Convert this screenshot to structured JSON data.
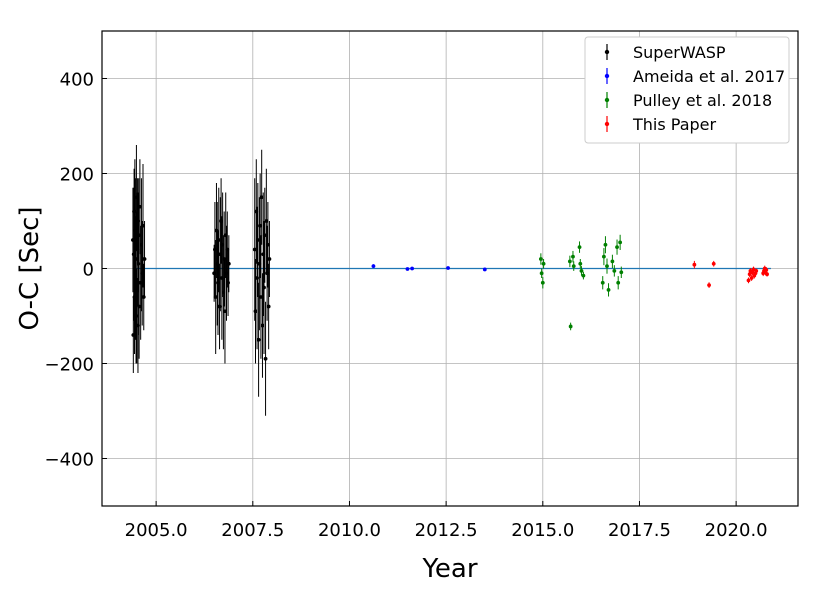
{
  "chart_data": {
    "type": "scatter",
    "title": "",
    "xlabel": "Year",
    "ylabel": "O-C [Sec]",
    "xlim": [
      2003.6,
      2021.6
    ],
    "ylim": [
      -500,
      500
    ],
    "x_ticks": [
      2005.0,
      2007.5,
      2010.0,
      2012.5,
      2015.0,
      2017.5,
      2020.0
    ],
    "x_tick_labels": [
      "2005.0",
      "2007.5",
      "2010.0",
      "2012.5",
      "2015.0",
      "2017.5",
      "2020.0"
    ],
    "y_ticks": [
      -400,
      -200,
      0,
      200,
      400
    ],
    "y_tick_labels": [
      "−400",
      "−200",
      "0",
      "200",
      "400"
    ],
    "grid": true,
    "legend_position": "top-right",
    "fit_line": {
      "y": 0,
      "color": "#1f77b4"
    },
    "series": [
      {
        "name": "SuperWASP",
        "color": "#000000",
        "points": [
          [
            2004.4,
            60,
            110
          ],
          [
            2004.41,
            -140,
            80
          ],
          [
            2004.42,
            30,
            140
          ],
          [
            2004.43,
            120,
            90
          ],
          [
            2004.44,
            -60,
            120
          ],
          [
            2004.45,
            80,
            150
          ],
          [
            2004.46,
            -20,
            130
          ],
          [
            2004.47,
            20,
            170
          ],
          [
            2004.48,
            -100,
            100
          ],
          [
            2004.49,
            150,
            110
          ],
          [
            2004.5,
            -40,
            160
          ],
          [
            2004.51,
            40,
            120
          ],
          [
            2004.52,
            100,
            90
          ],
          [
            2004.53,
            -120,
            100
          ],
          [
            2004.54,
            10,
            150
          ],
          [
            2004.55,
            70,
            120
          ],
          [
            2004.56,
            -80,
            110
          ],
          [
            2004.58,
            130,
            100
          ],
          [
            2004.6,
            -30,
            120
          ],
          [
            2004.62,
            50,
            140
          ],
          [
            2004.64,
            -10,
            110
          ],
          [
            2004.66,
            90,
            130
          ],
          [
            2004.68,
            -60,
            70
          ],
          [
            2004.7,
            20,
            80
          ],
          [
            2006.5,
            -10,
            60
          ],
          [
            2006.52,
            40,
            100
          ],
          [
            2006.54,
            -60,
            120
          ],
          [
            2006.56,
            80,
            100
          ],
          [
            2006.58,
            10,
            130
          ],
          [
            2006.6,
            -30,
            110
          ],
          [
            2006.62,
            60,
            110
          ],
          [
            2006.64,
            -80,
            90
          ],
          [
            2006.66,
            30,
            120
          ],
          [
            2006.68,
            100,
            90
          ],
          [
            2006.7,
            -20,
            130
          ],
          [
            2006.72,
            50,
            110
          ],
          [
            2006.74,
            -50,
            120
          ],
          [
            2006.76,
            20,
            100
          ],
          [
            2006.78,
            -90,
            110
          ],
          [
            2006.8,
            70,
            90
          ],
          [
            2006.82,
            -10,
            100
          ],
          [
            2006.84,
            40,
            80
          ],
          [
            2006.86,
            -30,
            70
          ],
          [
            2006.88,
            10,
            60
          ],
          [
            2007.55,
            40,
            150
          ],
          [
            2007.57,
            -90,
            110
          ],
          [
            2007.59,
            120,
            110
          ],
          [
            2007.61,
            -20,
            150
          ],
          [
            2007.63,
            60,
            120
          ],
          [
            2007.65,
            -150,
            120
          ],
          [
            2007.67,
            10,
            140
          ],
          [
            2007.69,
            90,
            110
          ],
          [
            2007.71,
            -60,
            130
          ],
          [
            2007.73,
            150,
            100
          ],
          [
            2007.75,
            -120,
            110
          ],
          [
            2007.77,
            30,
            130
          ],
          [
            2007.79,
            -40,
            140
          ],
          [
            2007.81,
            70,
            100
          ],
          [
            2007.83,
            -190,
            120
          ],
          [
            2007.85,
            100,
            110
          ],
          [
            2007.87,
            -10,
            100
          ],
          [
            2007.89,
            50,
            90
          ],
          [
            2007.91,
            -80,
            90
          ],
          [
            2007.93,
            20,
            80
          ]
        ]
      },
      {
        "name": "Ameida et al. 2017",
        "color": "#0000ff",
        "points": [
          [
            2010.62,
            5,
            4
          ],
          [
            2011.5,
            -1,
            3
          ],
          [
            2011.62,
            0,
            3
          ],
          [
            2012.55,
            1,
            3
          ],
          [
            2013.5,
            -2,
            3
          ]
        ]
      },
      {
        "name": "Pulley et al. 2018",
        "color": "#008000",
        "points": [
          [
            2014.95,
            20,
            12
          ],
          [
            2014.97,
            -10,
            10
          ],
          [
            2015.0,
            -30,
            12
          ],
          [
            2015.02,
            10,
            10
          ],
          [
            2015.7,
            15,
            12
          ],
          [
            2015.72,
            -122,
            8
          ],
          [
            2015.78,
            25,
            12
          ],
          [
            2015.8,
            5,
            10
          ],
          [
            2015.95,
            45,
            12
          ],
          [
            2015.97,
            10,
            10
          ],
          [
            2016.0,
            -5,
            10
          ],
          [
            2016.05,
            -15,
            8
          ],
          [
            2016.55,
            -30,
            14
          ],
          [
            2016.58,
            25,
            18
          ],
          [
            2016.62,
            50,
            18
          ],
          [
            2016.66,
            5,
            16
          ],
          [
            2016.7,
            -45,
            14
          ],
          [
            2016.8,
            15,
            14
          ],
          [
            2016.85,
            -5,
            12
          ],
          [
            2016.92,
            45,
            16
          ],
          [
            2016.95,
            -30,
            14
          ],
          [
            2017.0,
            55,
            16
          ],
          [
            2017.03,
            -8,
            12
          ]
        ]
      },
      {
        "name": "This Paper",
        "color": "#ff0000",
        "points": [
          [
            2018.92,
            8,
            8
          ],
          [
            2019.3,
            -35,
            6
          ],
          [
            2019.42,
            10,
            6
          ],
          [
            2020.32,
            -25,
            6
          ],
          [
            2020.35,
            -12,
            6
          ],
          [
            2020.37,
            -5,
            6
          ],
          [
            2020.4,
            -20,
            6
          ],
          [
            2020.42,
            -8,
            6
          ],
          [
            2020.45,
            -2,
            6
          ],
          [
            2020.47,
            -15,
            6
          ],
          [
            2020.5,
            -10,
            6
          ],
          [
            2020.52,
            -5,
            5
          ],
          [
            2020.7,
            -10,
            6
          ],
          [
            2020.72,
            -5,
            6
          ],
          [
            2020.74,
            0,
            6
          ],
          [
            2020.76,
            -8,
            6
          ],
          [
            2020.78,
            -3,
            6
          ],
          [
            2020.8,
            -12,
            5
          ]
        ]
      }
    ]
  }
}
